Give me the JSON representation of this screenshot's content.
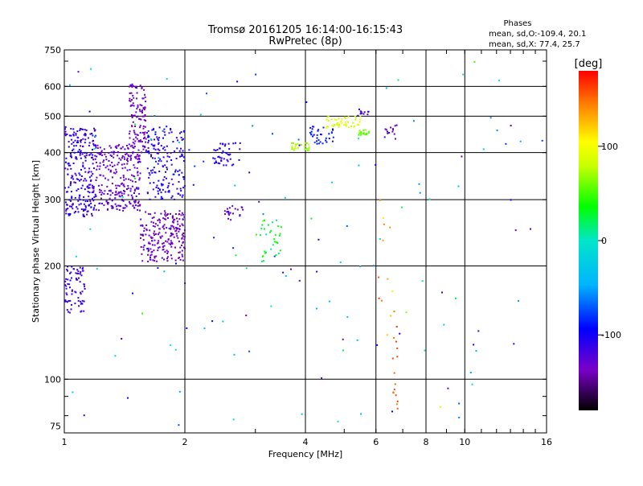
{
  "chart_data": {
    "type": "scatter",
    "title": "Tromsø 20161205 16:14:00-16:15:43",
    "subtitle": "RwPretec (8p)",
    "xlabel": "Frequency [MHz]",
    "ylabel": "Stationary phase Virtual Height [km]",
    "x_scale": "log",
    "y_scale": "log",
    "xlim": [
      1,
      16
    ],
    "ylim": [
      72,
      750
    ],
    "x_ticks": [
      1,
      2,
      4,
      6,
      8,
      10,
      16
    ],
    "y_ticks": [
      75,
      100,
      200,
      300,
      400,
      500,
      600,
      750
    ],
    "x_grid_lines": [
      2,
      4,
      6,
      8,
      10
    ],
    "y_grid_lines": [
      100,
      200,
      300,
      400,
      500,
      600
    ],
    "legend": {
      "title": "Phases",
      "lines": [
        "mean, sd,O:-109.4, 20.1",
        "mean, sd,X:  77.4, 25.7"
      ]
    },
    "colorbar": {
      "label": "[deg]",
      "range": [
        -180,
        180
      ],
      "ticks": [
        100,
        0,
        -100
      ]
    },
    "clusters": [
      {
        "x_range": [
          1.0,
          1.2
        ],
        "y_range": [
          270,
          470
        ],
        "phase_mean": -110,
        "phase_sd": 15,
        "count": 260
      },
      {
        "x_range": [
          1.2,
          1.55
        ],
        "y_range": [
          280,
          420
        ],
        "phase_mean": -130,
        "phase_sd": 10,
        "count": 260
      },
      {
        "x_range": [
          1.45,
          1.6
        ],
        "y_range": [
          400,
          610
        ],
        "phase_mean": -135,
        "phase_sd": 8,
        "count": 110
      },
      {
        "x_range": [
          1.6,
          2.0
        ],
        "y_range": [
          300,
          470
        ],
        "phase_mean": -105,
        "phase_sd": 15,
        "count": 170
      },
      {
        "x_range": [
          1.55,
          2.0
        ],
        "y_range": [
          205,
          280
        ],
        "phase_mean": -135,
        "phase_sd": 10,
        "count": 210
      },
      {
        "x_range": [
          1.0,
          1.13
        ],
        "y_range": [
          150,
          200
        ],
        "phase_mean": -115,
        "phase_sd": 12,
        "count": 80
      },
      {
        "x_range": [
          2.35,
          2.75
        ],
        "y_range": [
          370,
          425
        ],
        "phase_mean": -105,
        "phase_sd": 10,
        "count": 45
      },
      {
        "x_range": [
          2.5,
          2.8
        ],
        "y_range": [
          265,
          290
        ],
        "phase_mean": -130,
        "phase_sd": 10,
        "count": 22
      },
      {
        "x_range": [
          3.0,
          3.5
        ],
        "y_range": [
          205,
          265
        ],
        "phase_mean": 30,
        "phase_sd": 20,
        "count": 35
      },
      {
        "x_range": [
          3.7,
          4.1
        ],
        "y_range": [
          405,
          425
        ],
        "phase_mean": 75,
        "phase_sd": 15,
        "count": 30
      },
      {
        "x_range": [
          4.1,
          4.7
        ],
        "y_range": [
          420,
          470
        ],
        "phase_mean": -90,
        "phase_sd": 15,
        "count": 35
      },
      {
        "x_range": [
          4.5,
          5.5
        ],
        "y_range": [
          465,
          500
        ],
        "phase_mean": 85,
        "phase_sd": 15,
        "count": 45
      },
      {
        "x_range": [
          5.4,
          5.8
        ],
        "y_range": [
          445,
          460
        ],
        "phase_mean": 60,
        "phase_sd": 10,
        "count": 20
      },
      {
        "x_range": [
          5.4,
          5.8
        ],
        "y_range": [
          495,
          525
        ],
        "phase_mean": -110,
        "phase_sd": 15,
        "count": 12
      },
      {
        "x_range": [
          6.3,
          6.8
        ],
        "y_range": [
          435,
          475
        ],
        "phase_mean": -130,
        "phase_sd": 10,
        "count": 14
      },
      {
        "x_range": [
          6.6,
          6.8
        ],
        "y_range": [
          80,
          200
        ],
        "phase_mean": 160,
        "phase_sd": 15,
        "count": 16
      },
      {
        "x_range": [
          6.0,
          6.8
        ],
        "y_range": [
          130,
          300
        ],
        "phase_mean": 140,
        "phase_sd": 35,
        "count": 12
      },
      {
        "x_range": [
          1.0,
          16.0
        ],
        "y_range": [
          75,
          700
        ],
        "phase_mean": -60,
        "phase_sd": 100,
        "count": 140
      }
    ]
  }
}
